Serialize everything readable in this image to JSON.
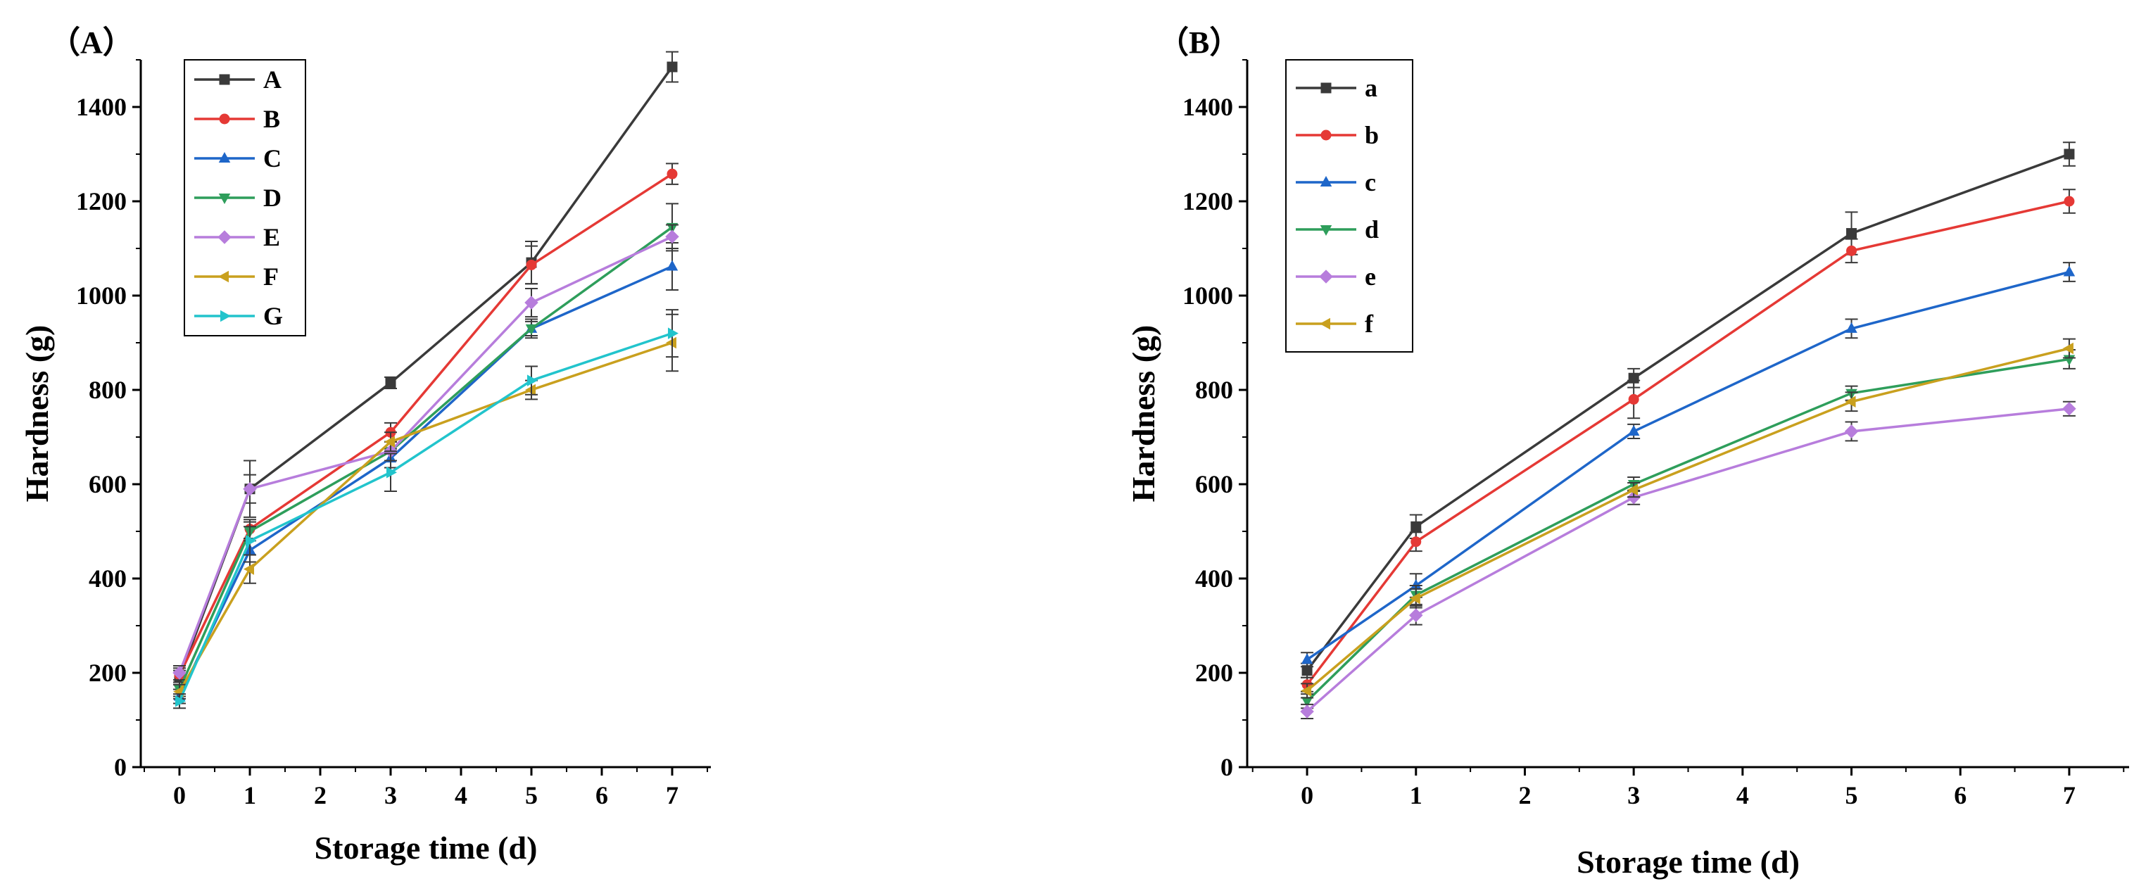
{
  "chart_data": [
    {
      "type": "line",
      "panel_label": "（A）",
      "xlabel": "Storage time (d)",
      "ylabel": "Hardness (g)",
      "x": [
        0,
        1,
        3,
        5,
        7
      ],
      "xlim": [
        -0.55,
        7.55
      ],
      "ylim": [
        0,
        1500
      ],
      "xticks": [
        0,
        1,
        2,
        3,
        4,
        5,
        6,
        7
      ],
      "yticks": [
        0,
        200,
        400,
        600,
        800,
        1000,
        1200,
        1400
      ],
      "legend": "top-left",
      "series": [
        {
          "name": "A",
          "color": "#3a3a3a",
          "marker": "square",
          "values": [
            190,
            590,
            815,
            1070,
            1485
          ],
          "errors": [
            15,
            30,
            12,
            45,
            32
          ]
        },
        {
          "name": "B",
          "color": "#e53935",
          "marker": "circle",
          "values": [
            195,
            505,
            710,
            1065,
            1258
          ],
          "errors": [
            15,
            20,
            20,
            40,
            22
          ]
        },
        {
          "name": "C",
          "color": "#1e66c9",
          "marker": "triangle-up",
          "values": [
            150,
            460,
            655,
            930,
            1062
          ],
          "errors": [
            15,
            25,
            20,
            20,
            50
          ]
        },
        {
          "name": "D",
          "color": "#2e9e5b",
          "marker": "triangle-down",
          "values": [
            165,
            500,
            670,
            930,
            1145
          ],
          "errors": [
            15,
            20,
            20,
            15,
            50
          ]
        },
        {
          "name": "E",
          "color": "#b77ddc",
          "marker": "diamond",
          "values": [
            200,
            590,
            670,
            985,
            1125
          ],
          "errors": [
            15,
            60,
            20,
            30,
            25
          ]
        },
        {
          "name": "F",
          "color": "#c9a01e",
          "marker": "triangle-left",
          "values": [
            160,
            420,
            690,
            800,
            900
          ],
          "errors": [
            15,
            30,
            20,
            20,
            60
          ]
        },
        {
          "name": "G",
          "color": "#22c4cc",
          "marker": "triangle-right",
          "values": [
            140,
            480,
            625,
            820,
            920
          ],
          "errors": [
            15,
            30,
            40,
            30,
            50
          ]
        }
      ]
    },
    {
      "type": "line",
      "panel_label": "（B）",
      "xlabel": "Storage time (d)",
      "ylabel": "Hardness (g)",
      "x": [
        0,
        1,
        3,
        5,
        7
      ],
      "xlim": [
        -0.55,
        7.55
      ],
      "ylim": [
        0,
        1500
      ],
      "xticks": [
        0,
        1,
        2,
        3,
        4,
        5,
        6,
        7
      ],
      "yticks": [
        0,
        200,
        400,
        600,
        800,
        1000,
        1200,
        1400
      ],
      "legend": "top-left",
      "series": [
        {
          "name": "a",
          "color": "#3a3a3a",
          "marker": "square",
          "values": [
            205,
            510,
            825,
            1132,
            1300
          ],
          "errors": [
            15,
            25,
            20,
            45,
            25
          ]
        },
        {
          "name": "b",
          "color": "#e53935",
          "marker": "circle",
          "values": [
            175,
            478,
            780,
            1095,
            1200
          ],
          "errors": [
            15,
            20,
            40,
            25,
            25
          ]
        },
        {
          "name": "c",
          "color": "#1e66c9",
          "marker": "triangle-up",
          "values": [
            228,
            385,
            712,
            930,
            1050
          ],
          "errors": [
            15,
            25,
            15,
            20,
            20
          ]
        },
        {
          "name": "d",
          "color": "#2e9e5b",
          "marker": "triangle-down",
          "values": [
            140,
            365,
            600,
            793,
            865
          ],
          "errors": [
            15,
            20,
            15,
            15,
            20
          ]
        },
        {
          "name": "e",
          "color": "#b77ddc",
          "marker": "diamond",
          "values": [
            118,
            322,
            572,
            712,
            760
          ],
          "errors": [
            15,
            20,
            15,
            20,
            15
          ]
        },
        {
          "name": "f",
          "color": "#c9a01e",
          "marker": "triangle-left",
          "values": [
            162,
            358,
            588,
            775,
            888
          ],
          "errors": [
            15,
            20,
            15,
            20,
            20
          ]
        }
      ]
    }
  ]
}
